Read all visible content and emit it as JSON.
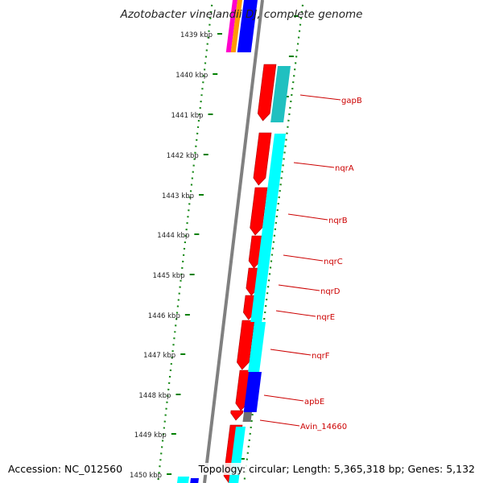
{
  "map": {
    "title": "Azotobacter vinelandii DJ, complete genome",
    "accession_text": "Accession: NC_012560",
    "summary_text": "Topology: circular; Length: 5,365,318 bp; Genes: 5,132",
    "colors": {
      "backbone": "#808080",
      "forward_cds": "#ff0000",
      "cyan_track": "#00ffff",
      "teal_track": "#20c0c0",
      "blue_track": "#0000ff",
      "gray_feature": "#707070",
      "magenta_track": "#ff00cc",
      "orange_track": "#ff9900",
      "tick_mark": "#008000",
      "gene_label": "#cc0000"
    },
    "ruler_labels": [
      "1439 kbp",
      "1440 kbp",
      "1441 kbp",
      "1442 kbp",
      "1443 kbp",
      "1444 kbp",
      "1445 kbp",
      "1446 kbp",
      "1447 kbp",
      "1448 kbp",
      "1449 kbp",
      "1450 kbp"
    ],
    "gene_labels": [
      "gapB",
      "nqrA",
      "nqrB",
      "nqrC",
      "nqrD",
      "nqrE",
      "nqrF",
      "apbE",
      "Avin_14660"
    ]
  }
}
